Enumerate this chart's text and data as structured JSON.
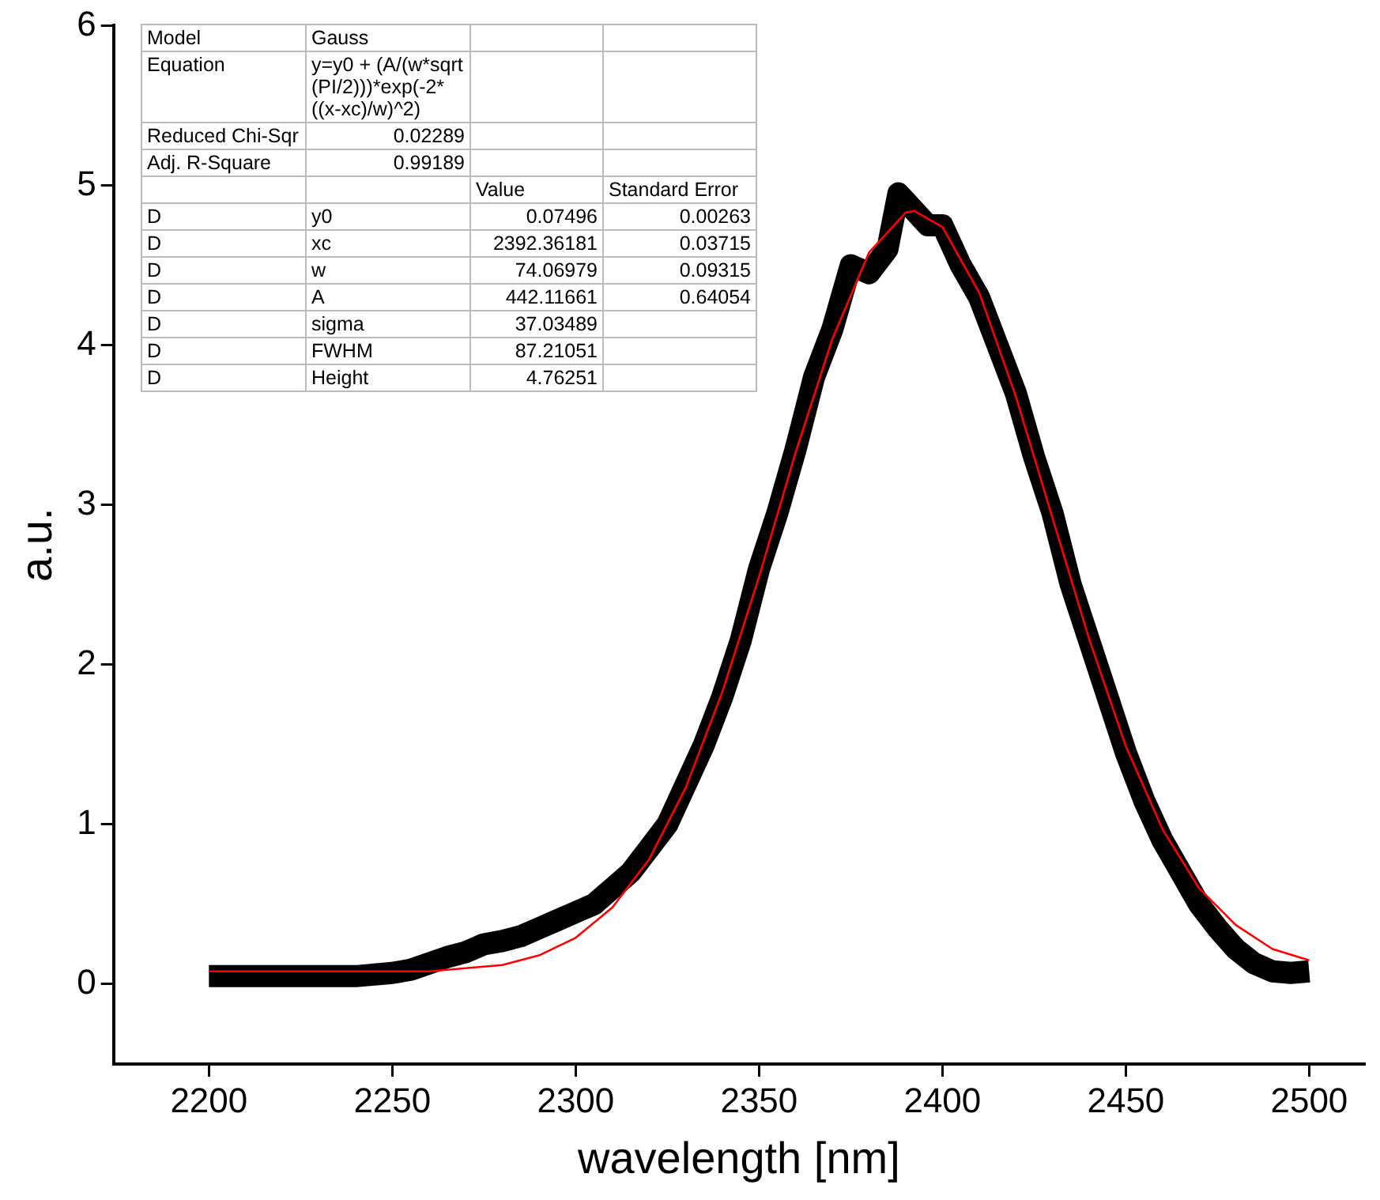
{
  "chart_data": {
    "type": "line",
    "xlabel": "wavelength [nm]",
    "ylabel": "a.u.",
    "xlim": [
      2174,
      2515
    ],
    "xticks": [
      2200,
      2250,
      2300,
      2350,
      2400,
      2450,
      2500
    ],
    "ylim": [
      -0.5,
      6
    ],
    "yticks": [
      0,
      1,
      2,
      3,
      4,
      5,
      6
    ],
    "grid": false,
    "legend": false,
    "marker": "none",
    "line_style": "solid",
    "series": [
      {
        "color": "#000000",
        "x": [
          2200,
          2210,
          2220,
          2230,
          2240,
          2250,
          2255,
          2260,
          2265,
          2270,
          2275,
          2280,
          2285,
          2290,
          2295,
          2300,
          2305,
          2310,
          2315,
          2320,
          2325,
          2330,
          2335,
          2340,
          2345,
          2350,
          2355,
          2360,
          2365,
          2370,
          2375,
          2380,
          2385,
          2388,
          2392,
          2396,
          2400,
          2405,
          2410,
          2415,
          2420,
          2425,
          2430,
          2435,
          2440,
          2445,
          2450,
          2455,
          2460,
          2465,
          2470,
          2475,
          2480,
          2485,
          2490,
          2495,
          2500
        ],
        "values": [
          0.05,
          0.05,
          0.05,
          0.05,
          0.05,
          0.07,
          0.09,
          0.13,
          0.17,
          0.2,
          0.25,
          0.27,
          0.3,
          0.35,
          0.4,
          0.45,
          0.5,
          0.6,
          0.7,
          0.85,
          1.0,
          1.25,
          1.5,
          1.8,
          2.15,
          2.6,
          2.95,
          3.35,
          3.8,
          4.1,
          4.5,
          4.45,
          4.6,
          4.95,
          4.85,
          4.75,
          4.75,
          4.5,
          4.3,
          4.0,
          3.7,
          3.3,
          2.95,
          2.5,
          2.15,
          1.8,
          1.45,
          1.15,
          0.9,
          0.7,
          0.5,
          0.35,
          0.22,
          0.13,
          0.08,
          0.07,
          0.08
        ]
      },
      {
        "color": "#ff0000",
        "x": [
          2200,
          2220,
          2240,
          2260,
          2270,
          2280,
          2290,
          2300,
          2310,
          2320,
          2330,
          2340,
          2350,
          2360,
          2370,
          2380,
          2390,
          2392.36,
          2400,
          2410,
          2420,
          2430,
          2440,
          2450,
          2460,
          2470,
          2480,
          2490,
          2500
        ],
        "values": [
          0.08,
          0.08,
          0.08,
          0.08,
          0.1,
          0.12,
          0.18,
          0.29,
          0.48,
          0.78,
          1.23,
          1.83,
          2.55,
          3.33,
          4.04,
          4.58,
          4.83,
          4.84,
          4.74,
          4.33,
          3.68,
          2.92,
          2.16,
          1.49,
          0.97,
          0.6,
          0.37,
          0.22,
          0.15
        ]
      }
    ],
    "annotations": [
      "Model",
      "Gauss",
      null,
      null,
      "Equation",
      "y=y0 + (A/(w*sqrt(PI/2)))*exp(-2*((x-xc)/w)^2)",
      null,
      null,
      "Reduced Chi-Sqr",
      "0.02289",
      null,
      null,
      "Adj. R-Square",
      "0.99189",
      null,
      null,
      null,
      null,
      "Value",
      "Standard Error",
      "D",
      "y0",
      "0.07496",
      "0.00263",
      "D",
      "xc",
      "2392.36181",
      "0.03715",
      "D",
      "w",
      "74.06979",
      "0.09315",
      "D",
      "A",
      "442.11661",
      "0.64054",
      "D",
      "sigma",
      "37.03489",
      null,
      "D",
      "FWHM",
      "87.21051",
      null,
      "D",
      "Height",
      "4.76251",
      null
    ]
  }
}
